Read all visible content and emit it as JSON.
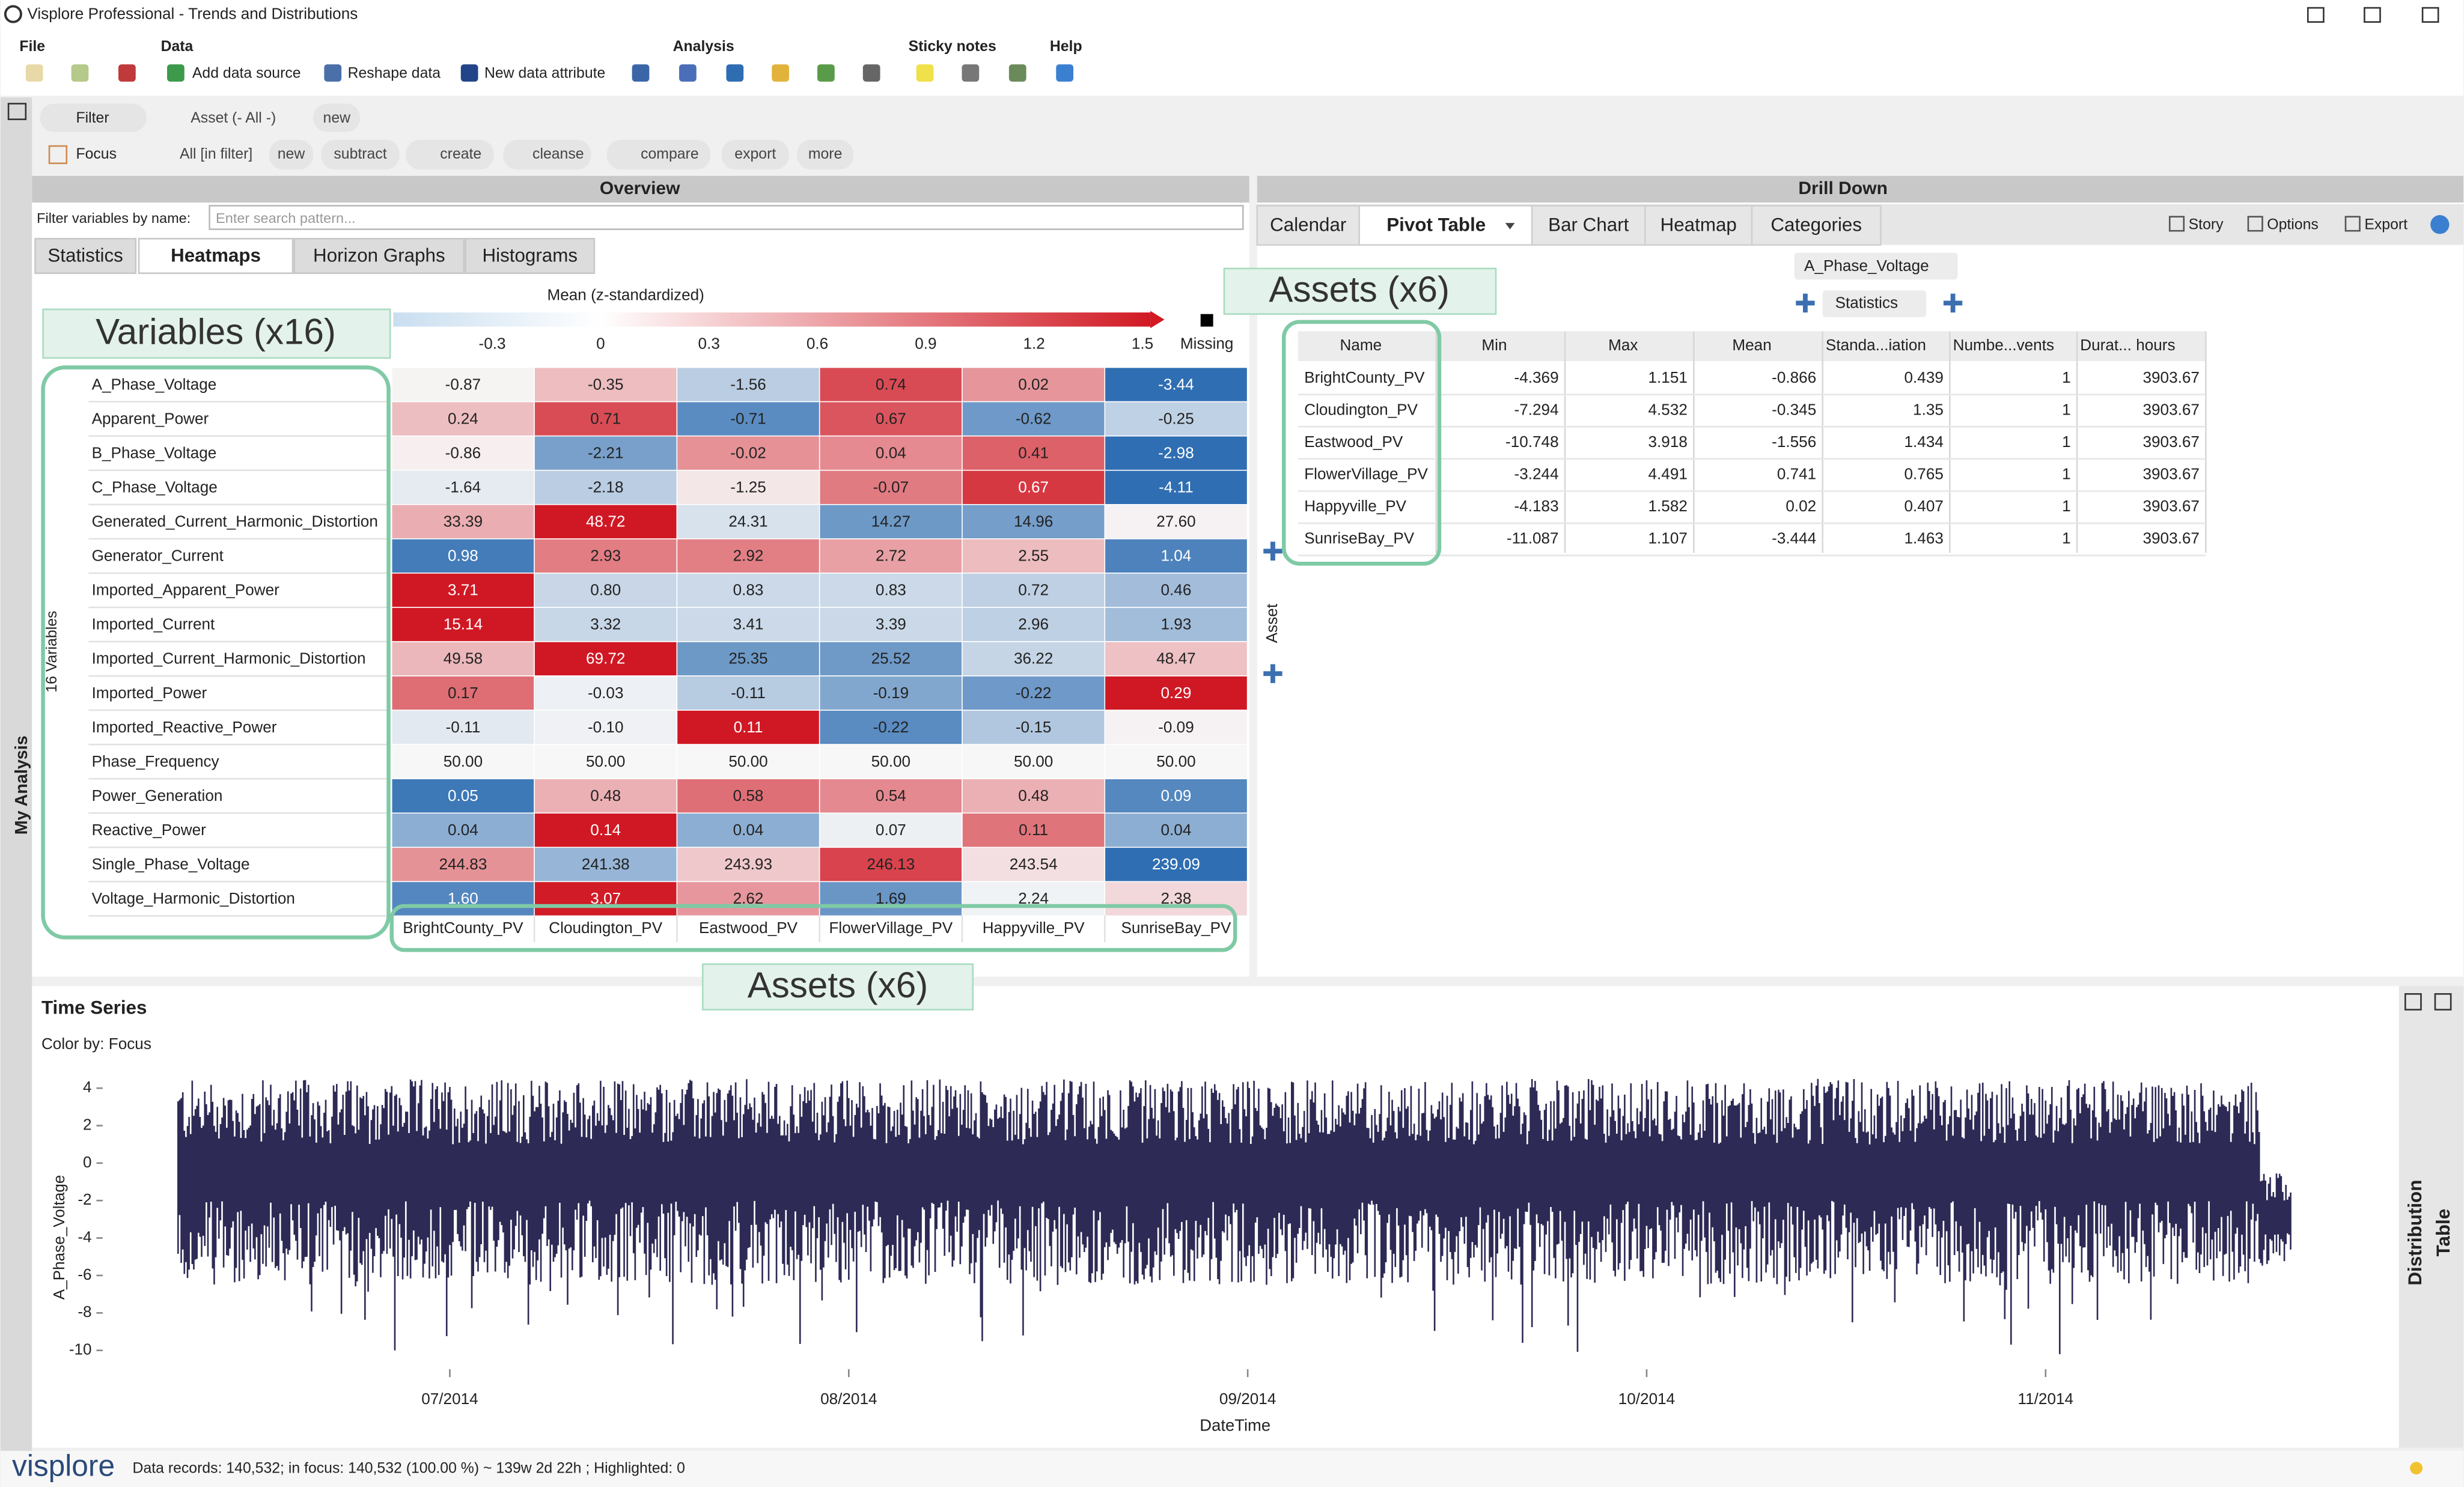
{
  "window": {
    "title": "Visplore Professional - Trends and Distributions"
  },
  "menu": {
    "groups": [
      "File",
      "Data",
      "Analysis",
      "Sticky notes",
      "Help"
    ],
    "data_buttons": [
      "Add data source",
      "Reshape data",
      "New data attribute"
    ]
  },
  "filter_bar": {
    "filter": "Filter",
    "asset": "Asset (- All -)",
    "new": "new",
    "focus": "Focus",
    "scope": "All [in filter]",
    "actions": [
      "new",
      "subtract",
      "create",
      "cleanse",
      "compare",
      "export",
      "more"
    ]
  },
  "side_label": "My Analysis",
  "overview": {
    "title": "Overview",
    "search_label": "Filter variables by name:",
    "search_placeholder": "Enter search pattern...",
    "tabs": [
      "Statistics",
      "Heatmaps",
      "Horizon Graphs",
      "Histograms"
    ],
    "active_tab": 1,
    "heatmap": {
      "legend_title": "Mean (z-standardized)",
      "legend_ticks": [
        -0.3,
        0,
        0.3,
        0.6,
        0.9,
        1.2,
        1.5
      ],
      "missing": "Missing",
      "variables_count": "16 Variables",
      "variables": [
        "A_Phase_Voltage",
        "Apparent_Power",
        "B_Phase_Voltage",
        "C_Phase_Voltage",
        "Generated_Current_Harmonic_Distortion",
        "Generator_Current",
        "Imported_Apparent_Power",
        "Imported_Current",
        "Imported_Current_Harmonic_Distortion",
        "Imported_Power",
        "Imported_Reactive_Power",
        "Phase_Frequency",
        "Power_Generation",
        "Reactive_Power",
        "Single_Phase_Voltage",
        "Voltage_Harmonic_Distortion"
      ],
      "assets": [
        "BrightCounty_PV",
        "Cloudington_PV",
        "Eastwood_PV",
        "FlowerVillage_PV",
        "Happyville_PV",
        "SunriseBay_PV"
      ],
      "cells": [
        [
          "-0.87",
          "-0.35",
          "-1.56",
          "0.74",
          "0.02",
          "-3.44"
        ],
        [
          "0.24",
          "0.71",
          "-0.71",
          "0.67",
          "-0.62",
          "-0.25"
        ],
        [
          "-0.86",
          "-2.21",
          "-0.02",
          "0.04",
          "0.41",
          "-2.98"
        ],
        [
          "-1.64",
          "-2.18",
          "-1.25",
          "-0.07",
          "0.67",
          "-4.11"
        ],
        [
          "33.39",
          "48.72",
          "24.31",
          "14.27",
          "14.96",
          "27.60"
        ],
        [
          "0.98",
          "2.93",
          "2.92",
          "2.72",
          "2.55",
          "1.04"
        ],
        [
          "3.71",
          "0.80",
          "0.83",
          "0.83",
          "0.72",
          "0.46"
        ],
        [
          "15.14",
          "3.32",
          "3.41",
          "3.39",
          "2.96",
          "1.93"
        ],
        [
          "49.58",
          "69.72",
          "25.35",
          "25.52",
          "36.22",
          "48.47"
        ],
        [
          "0.17",
          "-0.03",
          "-0.11",
          "-0.19",
          "-0.22",
          "0.29"
        ],
        [
          "-0.11",
          "-0.10",
          "0.11",
          "-0.22",
          "-0.15",
          "-0.09"
        ],
        [
          "50.00",
          "50.00",
          "50.00",
          "50.00",
          "50.00",
          "50.00"
        ],
        [
          "0.05",
          "0.48",
          "0.58",
          "0.54",
          "0.48",
          "0.09"
        ],
        [
          "0.04",
          "0.14",
          "0.04",
          "0.07",
          "0.11",
          "0.04"
        ],
        [
          "244.83",
          "241.38",
          "243.93",
          "246.13",
          "243.54",
          "239.09"
        ],
        [
          "1.60",
          "3.07",
          "2.62",
          "1.69",
          "2.24",
          "2.38"
        ]
      ]
    }
  },
  "annotations": {
    "variables": "Variables (x16)",
    "assets_heatmap": "Assets (x6)",
    "assets_pivot": "Assets (x6)"
  },
  "drill_down": {
    "title": "Drill Down",
    "tabs": [
      "Calendar",
      "Pivot Table",
      "Bar Chart",
      "Heatmap",
      "Categories"
    ],
    "active_tab": 1,
    "tools": [
      "Story",
      "Options",
      "Export"
    ],
    "variable": "A_Phase_Voltage",
    "aggregation": "Statistics",
    "axis_label": "Asset",
    "pivot": {
      "columns": [
        "Name",
        "Min",
        "Max",
        "Mean",
        "Standa...iation",
        "Numbe...vents",
        "Durat... hours"
      ],
      "rows": [
        [
          "BrightCounty_PV",
          "-4.369",
          "1.151",
          "-0.866",
          "0.439",
          "1",
          "3903.67"
        ],
        [
          "Cloudington_PV",
          "-7.294",
          "4.532",
          "-0.345",
          "1.35",
          "1",
          "3903.67"
        ],
        [
          "Eastwood_PV",
          "-10.748",
          "3.918",
          "-1.556",
          "1.434",
          "1",
          "3903.67"
        ],
        [
          "FlowerVillage_PV",
          "-3.244",
          "4.491",
          "0.741",
          "0.765",
          "1",
          "3903.67"
        ],
        [
          "Happyville_PV",
          "-4.183",
          "1.582",
          "0.02",
          "0.407",
          "1",
          "3903.67"
        ],
        [
          "SunriseBay_PV",
          "-11.087",
          "1.107",
          "-3.444",
          "1.463",
          "1",
          "3903.67"
        ]
      ]
    }
  },
  "time_series": {
    "title": "Time Series",
    "color_by": "Color by: Focus",
    "y_label": "A_Phase_Voltage",
    "ylim": [
      -11,
      5
    ],
    "yticks": [
      4,
      2,
      0,
      -2,
      -4,
      -6,
      -8,
      -10
    ],
    "x_label": "DateTime",
    "xticks": [
      "07/2014",
      "08/2014",
      "09/2014",
      "10/2014",
      "11/2014"
    ],
    "color": "#2d2a55",
    "side_labels": [
      "Distribution",
      "Table"
    ]
  },
  "status": {
    "logo": "visplore",
    "text": "Data records: 140,532; in focus: 140,532 (100.00 %) ~ 139w 2d 22h ; Highlighted: 0"
  }
}
